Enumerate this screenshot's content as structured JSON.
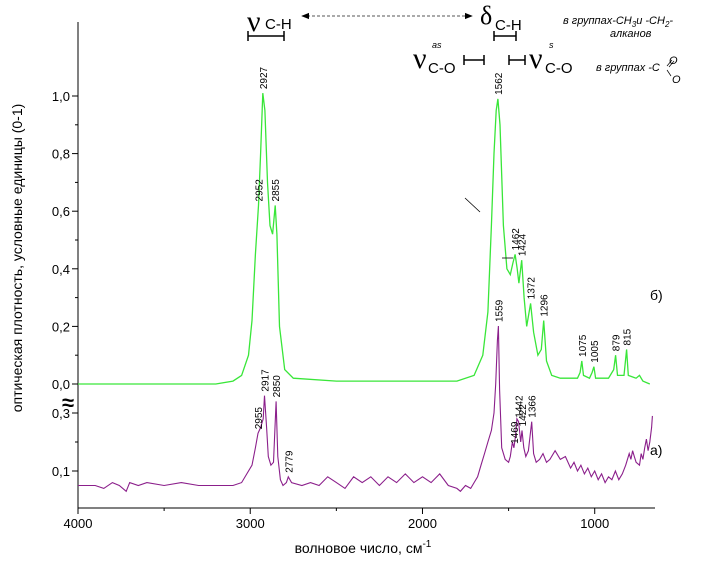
{
  "chart_data": {
    "type": "line",
    "xlabel": "волновое число, см",
    "xlabel_sup": "-1",
    "ylabel": "оптическая плотность, условные единицы (0-1)",
    "x_reversed": true,
    "xlim": [
      4000,
      650
    ],
    "x_ticks": [
      "4000",
      "3000",
      "2000",
      "1000"
    ],
    "y_ticks_upper": [
      "0,0",
      "0,2",
      "0,4",
      "0,6",
      "0,8",
      "1,0"
    ],
    "y_ticks_lower": [
      "0,1",
      "0,3"
    ],
    "axis_break": "≈",
    "series": [
      {
        "name": "б)",
        "color": "#39e639",
        "points": [
          [
            4000,
            0.0
          ],
          [
            3200,
            0.0
          ],
          [
            3100,
            0.01
          ],
          [
            3050,
            0.03
          ],
          [
            3010,
            0.1
          ],
          [
            2990,
            0.22
          ],
          [
            2970,
            0.45
          ],
          [
            2952,
            0.62
          ],
          [
            2940,
            0.8
          ],
          [
            2927,
            1.01
          ],
          [
            2915,
            0.95
          ],
          [
            2900,
            0.7
          ],
          [
            2885,
            0.55
          ],
          [
            2870,
            0.52
          ],
          [
            2855,
            0.62
          ],
          [
            2845,
            0.52
          ],
          [
            2830,
            0.2
          ],
          [
            2800,
            0.05
          ],
          [
            2750,
            0.02
          ],
          [
            2500,
            0.01
          ],
          [
            1800,
            0.01
          ],
          [
            1700,
            0.03
          ],
          [
            1650,
            0.1
          ],
          [
            1620,
            0.25
          ],
          [
            1600,
            0.55
          ],
          [
            1585,
            0.8
          ],
          [
            1572,
            0.95
          ],
          [
            1562,
            0.99
          ],
          [
            1550,
            0.9
          ],
          [
            1530,
            0.55
          ],
          [
            1510,
            0.4
          ],
          [
            1490,
            0.38
          ],
          [
            1475,
            0.42
          ],
          [
            1462,
            0.45
          ],
          [
            1450,
            0.4
          ],
          [
            1440,
            0.35
          ],
          [
            1424,
            0.43
          ],
          [
            1410,
            0.3
          ],
          [
            1395,
            0.2
          ],
          [
            1372,
            0.28
          ],
          [
            1355,
            0.18
          ],
          [
            1330,
            0.1
          ],
          [
            1310,
            0.12
          ],
          [
            1296,
            0.22
          ],
          [
            1280,
            0.08
          ],
          [
            1250,
            0.03
          ],
          [
            1200,
            0.02
          ],
          [
            1100,
            0.02
          ],
          [
            1085,
            0.04
          ],
          [
            1075,
            0.08
          ],
          [
            1065,
            0.03
          ],
          [
            1030,
            0.02
          ],
          [
            1015,
            0.04
          ],
          [
            1005,
            0.06
          ],
          [
            995,
            0.02
          ],
          [
            920,
            0.02
          ],
          [
            890,
            0.05
          ],
          [
            879,
            0.1
          ],
          [
            868,
            0.03
          ],
          [
            830,
            0.03
          ],
          [
            815,
            0.12
          ],
          [
            805,
            0.03
          ],
          [
            760,
            0.02
          ],
          [
            740,
            0.03
          ],
          [
            720,
            0.01
          ],
          [
            680,
            0.0
          ]
        ],
        "peaks": [
          [
            "2952",
            2952,
            0.62
          ],
          [
            "2927",
            2927,
            1.01
          ],
          [
            "2855",
            2855,
            0.62
          ],
          [
            "1562",
            1562,
            0.99
          ],
          [
            "1462",
            1462,
            0.45
          ],
          [
            "1424",
            1424,
            0.43
          ],
          [
            "1372",
            1372,
            0.28
          ],
          [
            "1296",
            1296,
            0.22
          ],
          [
            "1075",
            1075,
            0.08
          ],
          [
            "1005",
            1005,
            0.06
          ],
          [
            "879",
            879,
            0.1
          ],
          [
            "815",
            815,
            0.12
          ]
        ]
      },
      {
        "name": "а)",
        "color": "#8b1f8b",
        "points": [
          [
            4000,
            0.05
          ],
          [
            3900,
            0.05
          ],
          [
            3850,
            0.04
          ],
          [
            3800,
            0.06
          ],
          [
            3760,
            0.05
          ],
          [
            3720,
            0.03
          ],
          [
            3700,
            0.06
          ],
          [
            3650,
            0.05
          ],
          [
            3600,
            0.06
          ],
          [
            3500,
            0.05
          ],
          [
            3400,
            0.06
          ],
          [
            3300,
            0.05
          ],
          [
            3200,
            0.05
          ],
          [
            3100,
            0.05
          ],
          [
            3050,
            0.06
          ],
          [
            3020,
            0.09
          ],
          [
            2990,
            0.12
          ],
          [
            2970,
            0.18
          ],
          [
            2955,
            0.23
          ],
          [
            2940,
            0.25
          ],
          [
            2925,
            0.28
          ],
          [
            2917,
            0.36
          ],
          [
            2905,
            0.25
          ],
          [
            2895,
            0.15
          ],
          [
            2880,
            0.12
          ],
          [
            2865,
            0.13
          ],
          [
            2850,
            0.34
          ],
          [
            2840,
            0.15
          ],
          [
            2825,
            0.07
          ],
          [
            2810,
            0.05
          ],
          [
            2790,
            0.06
          ],
          [
            2779,
            0.08
          ],
          [
            2760,
            0.06
          ],
          [
            2700,
            0.05
          ],
          [
            2650,
            0.06
          ],
          [
            2600,
            0.05
          ],
          [
            2550,
            0.08
          ],
          [
            2500,
            0.06
          ],
          [
            2450,
            0.04
          ],
          [
            2400,
            0.08
          ],
          [
            2350,
            0.06
          ],
          [
            2300,
            0.08
          ],
          [
            2250,
            0.05
          ],
          [
            2200,
            0.08
          ],
          [
            2150,
            0.06
          ],
          [
            2100,
            0.09
          ],
          [
            2050,
            0.06
          ],
          [
            2000,
            0.08
          ],
          [
            1950,
            0.06
          ],
          [
            1900,
            0.09
          ],
          [
            1850,
            0.05
          ],
          [
            1800,
            0.04
          ],
          [
            1780,
            0.03
          ],
          [
            1750,
            0.05
          ],
          [
            1720,
            0.04
          ],
          [
            1700,
            0.06
          ],
          [
            1680,
            0.08
          ],
          [
            1660,
            0.12
          ],
          [
            1640,
            0.16
          ],
          [
            1620,
            0.2
          ],
          [
            1600,
            0.24
          ],
          [
            1585,
            0.3
          ],
          [
            1575,
            0.4
          ],
          [
            1565,
            0.55
          ],
          [
            1559,
            0.6
          ],
          [
            1552,
            0.38
          ],
          [
            1540,
            0.18
          ],
          [
            1520,
            0.14
          ],
          [
            1500,
            0.13
          ],
          [
            1490,
            0.15
          ],
          [
            1478,
            0.2
          ],
          [
            1469,
            0.18
          ],
          [
            1460,
            0.22
          ],
          [
            1452,
            0.28
          ],
          [
            1442,
            0.27
          ],
          [
            1430,
            0.2
          ],
          [
            1422,
            0.24
          ],
          [
            1412,
            0.18
          ],
          [
            1400,
            0.15
          ],
          [
            1385,
            0.17
          ],
          [
            1366,
            0.27
          ],
          [
            1355,
            0.16
          ],
          [
            1340,
            0.13
          ],
          [
            1320,
            0.14
          ],
          [
            1300,
            0.16
          ],
          [
            1280,
            0.13
          ],
          [
            1260,
            0.14
          ],
          [
            1230,
            0.17
          ],
          [
            1200,
            0.14
          ],
          [
            1170,
            0.15
          ],
          [
            1140,
            0.11
          ],
          [
            1120,
            0.13
          ],
          [
            1100,
            0.1
          ],
          [
            1080,
            0.12
          ],
          [
            1060,
            0.09
          ],
          [
            1040,
            0.11
          ],
          [
            1020,
            0.08
          ],
          [
            1000,
            0.1
          ],
          [
            980,
            0.07
          ],
          [
            960,
            0.09
          ],
          [
            940,
            0.06
          ],
          [
            920,
            0.08
          ],
          [
            900,
            0.07
          ],
          [
            880,
            0.1
          ],
          [
            860,
            0.07
          ],
          [
            840,
            0.09
          ],
          [
            820,
            0.12
          ],
          [
            800,
            0.16
          ],
          [
            790,
            0.14
          ],
          [
            780,
            0.17
          ],
          [
            770,
            0.15
          ],
          [
            760,
            0.13
          ],
          [
            740,
            0.12
          ],
          [
            730,
            0.16
          ],
          [
            720,
            0.14
          ],
          [
            710,
            0.18
          ],
          [
            700,
            0.21
          ],
          [
            690,
            0.17
          ],
          [
            680,
            0.2
          ],
          [
            670,
            0.25
          ],
          [
            665,
            0.29
          ]
        ],
        "peaks": [
          [
            "2955",
            2955,
            0.23
          ],
          [
            "2917",
            2917,
            0.36
          ],
          [
            "2850",
            2850,
            0.34
          ],
          [
            "2779",
            2779,
            0.08
          ],
          [
            "1559",
            1559,
            0.6
          ],
          [
            "1469",
            1469,
            0.18
          ],
          [
            "1442",
            1442,
            0.27
          ],
          [
            "1422",
            1422,
            0.24
          ],
          [
            "1366",
            1366,
            0.27
          ]
        ]
      }
    ],
    "annotations": {
      "nu": "ν",
      "delta": "δ",
      "ch": "C-H",
      "co": "C-O",
      "as": "as",
      "s": "s",
      "note_ch_1": "в группах-CH",
      "note_ch_1b": "3",
      "note_ch_1c": "и -CH",
      "note_ch_1d": "2",
      "note_ch_1e": "-",
      "note_ch_2": "алканов",
      "note_co_1": "в группах -C",
      "note_co_o": "O"
    }
  }
}
